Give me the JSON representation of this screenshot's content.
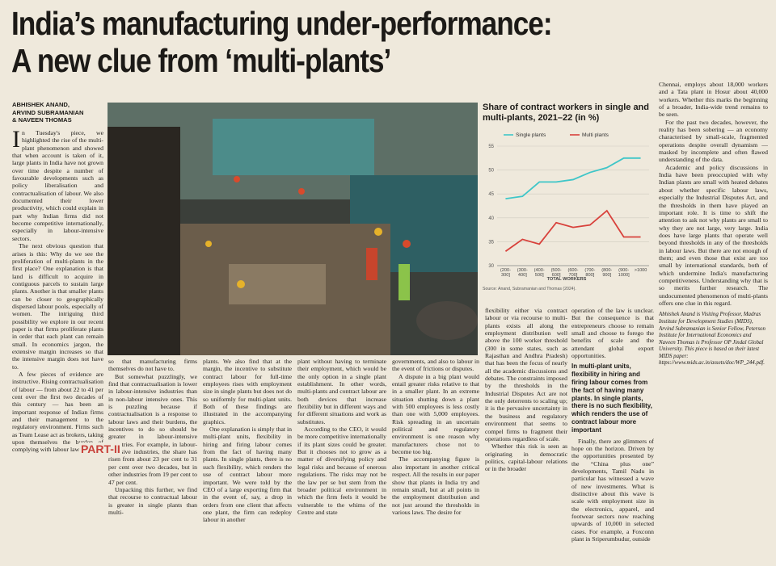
{
  "headline": [
    "India’s manufacturing under-performance:",
    "A new clue from ‘multi-plants’"
  ],
  "byline": [
    "ABHISHEK ANAND,",
    "ARVIND SUBRAMANIAN",
    "& NAVEEN THOMAS"
  ],
  "section_label": "PART-II",
  "columns": [
    [
      "In Tuesday's piece, we highlighted the rise of the multi-plant phenomenon and showed that when account is taken of it, large plants in India have not grown over time despite a number of favourable developments such as policy liberalisation and contractualisation of labour. We also documented their lower productivity, which could explain in part why Indian firms did not become competitive internationally, especially in labour-intensive sectors.",
      "The next obvious question that arises is this: Why do we see the proliferation of multi-plants in the first place? One explanation is that land is difficult to acquire in contiguous parcels to sustain large plants. Another is that smaller plants can be closer to geographically dispersed labour pools, especially of women. The intriguing third possibility we explore in our recent paper is that firms proliferate plants in order that each plant can remain small. In economics jargon, the extensive margin increases so that the intensive margin does not have to.",
      "A few pieces of evidence are instructive. Rising contractualisation of labour — from about 22 to 41 per cent over the first two decades of this century — has been an important response of Indian firms and their management to the regulatory environment. Firms such as Team Lease act as brokers, taking upon themselves the burden of complying with labour laws"
    ],
    [
      "so that manufacturing firms themselves do not have to.",
      "But somewhat puzzlingly, we find that contractualisation is lower in labour-intensive industries than in non-labour intensive ones. This is puzzling because if contractualisation is a response to labour laws and their burdens, the incentives to do so should be greater in labour-intensive industries. For example, in labour-intensive industries, the share has risen from about 23 per cent to 31 per cent over two decades, but in other industries from 19 per cent to 47 per cent.",
      "Unpacking this further, we find that recourse to contractual labour is greater in single plants than multi-"
    ],
    [
      "plants. We also find that at the margin, the incentive to substitute contract labour for full-time employees rises with employment size in single plants but does not do so uniformly for multi-plant units. Both of these findings are illustrated in the accompanying graphics.",
      "One explanation is simply that in multi-plant units, flexibility in hiring and firing labour comes from the fact of having many plants. In single plants, there is no such flexibility, which renders the use of contract labour more important. We were told by the CEO of a large exporting firm that in the event of, say, a drop in orders from one client that affects one plant, the firm can redeploy labour in another"
    ],
    [
      "plant without having to terminate their employment, which would be the only option in a single plant establishment. In other words, multi-plants and contract labour are both devices that increase flexibility but in different ways and for different situations and work as substitutes.",
      "According to the CEO, it would be more competitive internationally if its plant sizes could be greater. But it chooses not to grow as a matter of diversifying policy and legal risks and because of onerous regulations. The risks may not be the law per se but stem from the broader political environment in which the firm feels it would be vulnerable to the whims of the Centre and state"
    ],
    [
      "governments, and also to labour in the event of frictions or disputes.",
      "A dispute in a big plant would entail greater risks relative to that in a smaller plant. In an extreme situation shutting down a plant with 500 employees is less costly than one with 5,000 employees. Risk spreading in an uncertain political and regulatory environment is one reason why manufacturers chose not to become too big.",
      "The accompanying figure is also important in another critical respect. All the results in our paper show that plants in India try and remain small, but at all points in the employment distribution and not just around the thresholds in various laws. The desire for"
    ],
    [
      "flexibility either via contract labour or via recourse to multi-plants exists all along the employment distribution well above the 100 worker threshold (300 in some states, such as Rajasthan and Andhra Pradesh) that has been the focus of nearly all the academic discussions and debates. The constraints imposed by the thresholds in the Industrial Disputes Act are not the only deterrents to scaling up; it is the pervasive uncertainty in the business and regulatory environment that seems to compel firms to fragment their operations regardless of scale.",
      "Whether this risk is seen as originating in democratic politics, capital-labour relations or in the broader"
    ],
    [
      "operation of the law is unclear. But the consequence is that entrepreneurs choose to remain small and choose to forego the benefits of scale and the attendant global export opportunities.",
      "Finally, there are glimmers of hope on the horizon. Driven by the opportunities presented by the “China plus one” developments, Tamil Nadu in particular has witnessed a wave of new investments. What is distinctive about this wave is scale with employment size in the electronics, apparel, and footwear sectors now reaching upwards of 10,000 in selected cases. For example, a Foxconn plant in Sriperumbudur, outside"
    ],
    [
      "Chennai, employs about 18,000 workers and a Tata plant in Hosur about 40,000 workers. Whether this marks the beginning of a broader, India-wide trend remains to be seen.",
      "For the past two decades, however, the reality has been sobering — an economy characterised by small-scale, fragmented operations despite overall dynamism — masked by incomplete and often flawed understanding of the data.",
      "Academic and policy discussions in India have been preoccupied with why Indian plants are small with heated debates about whether specific labour laws, especially the Industrial Disputes Act, and the thresholds in them have played an important role. It is time to shift the attention to ask not why plants are small to why they are not large, very large. India does have large plants that operate well beyond thresholds in any of the thresholds in labour laws. But there are not enough of them; and even those that exist are too small by international standards, both of which undermine India's manufacturing competitiveness. Understanding why that is so merits further research. The undocumented phenomenon of multi-plants offers one clue in this regard."
    ]
  ],
  "pull_quote": "In multi-plant units, flexibility in hiring and firing labour comes from the fact of having many plants. In single plants, there is no such flexibility, which renders the use of contract labour more important",
  "author_bio": "Abhishek Anand is Visiting Professor, Madras Institute for Development Studies (MIDS), Arvind Subramanian is Senior Fellow, Peterson Institute for International Economics and Naveen Thomas is Professor OP Jindal Global University. This piece is based on their latest MIDS paper: https://www.mids.ac.in/assets/doc/WP_244.pdf.",
  "chart_data": {
    "type": "line",
    "title": "Share of contract workers in single and multi-plants, 2021–22 (in %)",
    "categories": [
      "(200-300]",
      "(300-400]",
      "(400-500]",
      "(500-600]",
      "(600-700]",
      "(700-800]",
      "(800-900]",
      "(900-1000]",
      ">1000"
    ],
    "series": [
      {
        "name": "Single plants",
        "color": "#3ec6c8",
        "values": [
          44,
          44.5,
          47.5,
          47.5,
          48,
          49.5,
          50.5,
          52.5,
          52.5
        ]
      },
      {
        "name": "Multi plants",
        "color": "#d8413b",
        "values": [
          33,
          35.5,
          34.5,
          39,
          38,
          38.5,
          41.5,
          36,
          36
        ]
      }
    ],
    "ylim": [
      30,
      55
    ],
    "yticks": [
      30,
      35,
      40,
      45,
      50,
      55
    ],
    "grid": true,
    "x_label": "TOTAL WORKERS",
    "source": "Source: Anand, Subramanian and Thomas (2024)."
  }
}
